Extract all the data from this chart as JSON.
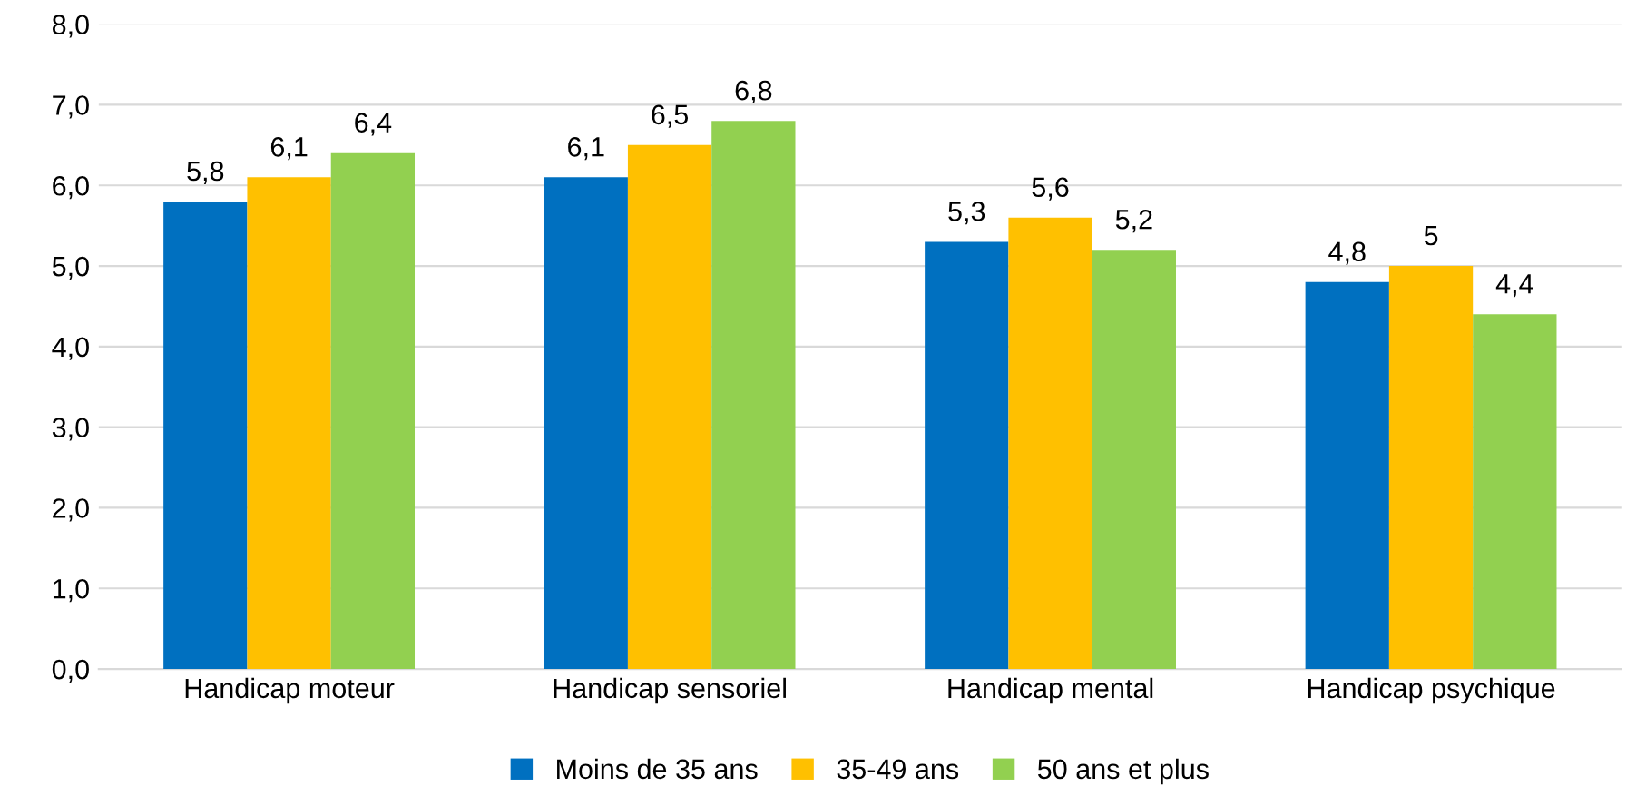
{
  "chart_data": {
    "type": "bar",
    "categories": [
      "Handicap moteur",
      "Handicap sensoriel",
      "Handicap mental",
      "Handicap psychique"
    ],
    "series": [
      {
        "name": "Moins de 35 ans",
        "color": "#0070c0",
        "values": [
          5.8,
          6.1,
          5.3,
          4.8
        ],
        "value_labels": [
          "5,8",
          "6,1",
          "5,3",
          "4,8"
        ]
      },
      {
        "name": "35-49 ans",
        "color": "#ffc000",
        "values": [
          6.1,
          6.5,
          5.6,
          5.0
        ],
        "value_labels": [
          "6,1",
          "6,5",
          "5,6",
          "5"
        ]
      },
      {
        "name": "50 ans et plus",
        "color": "#92d050",
        "values": [
          6.4,
          6.8,
          5.2,
          4.4
        ],
        "value_labels": [
          "6,4",
          "6,8",
          "5,2",
          "4,4"
        ]
      }
    ],
    "ylim": [
      0,
      8
    ],
    "yticks": [
      {
        "value": 0,
        "label": "0,0"
      },
      {
        "value": 1,
        "label": "1,0"
      },
      {
        "value": 2,
        "label": "2,0"
      },
      {
        "value": 3,
        "label": "3,0"
      },
      {
        "value": 4,
        "label": "4,0"
      },
      {
        "value": 5,
        "label": "5,0"
      },
      {
        "value": 6,
        "label": "6,0"
      },
      {
        "value": 7,
        "label": "7,0"
      },
      {
        "value": 8,
        "label": "8,0"
      }
    ],
    "grid": "y",
    "legend": "bottom"
  }
}
